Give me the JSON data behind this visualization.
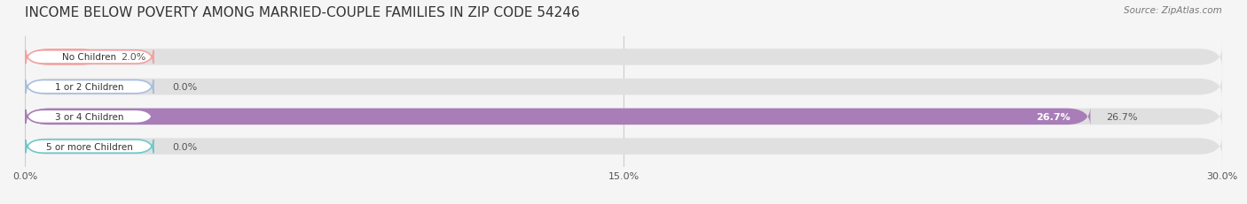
{
  "title": "INCOME BELOW POVERTY AMONG MARRIED-COUPLE FAMILIES IN ZIP CODE 54246",
  "source": "Source: ZipAtlas.com",
  "categories": [
    "No Children",
    "1 or 2 Children",
    "3 or 4 Children",
    "5 or more Children"
  ],
  "values": [
    2.0,
    0.0,
    26.7,
    0.0
  ],
  "bar_colors": [
    "#f4a0a0",
    "#a8bedd",
    "#a87db8",
    "#6ec8c8"
  ],
  "label_colors": [
    "#f4a0a0",
    "#a8bedd",
    "#9b6ab0",
    "#6ec8c8"
  ],
  "value_labels": [
    "2.0%",
    "0.0%",
    "26.7%",
    "0.0%"
  ],
  "xlim": [
    0,
    30
  ],
  "xticks": [
    0,
    15,
    30
  ],
  "xtick_labels": [
    "0.0%",
    "15.0%",
    "30.0%"
  ],
  "background_color": "#f5f5f5",
  "bar_background": "#e8e8e8",
  "title_fontsize": 11,
  "bar_height": 0.55,
  "figsize": [
    14.06,
    2.32
  ],
  "dpi": 100
}
